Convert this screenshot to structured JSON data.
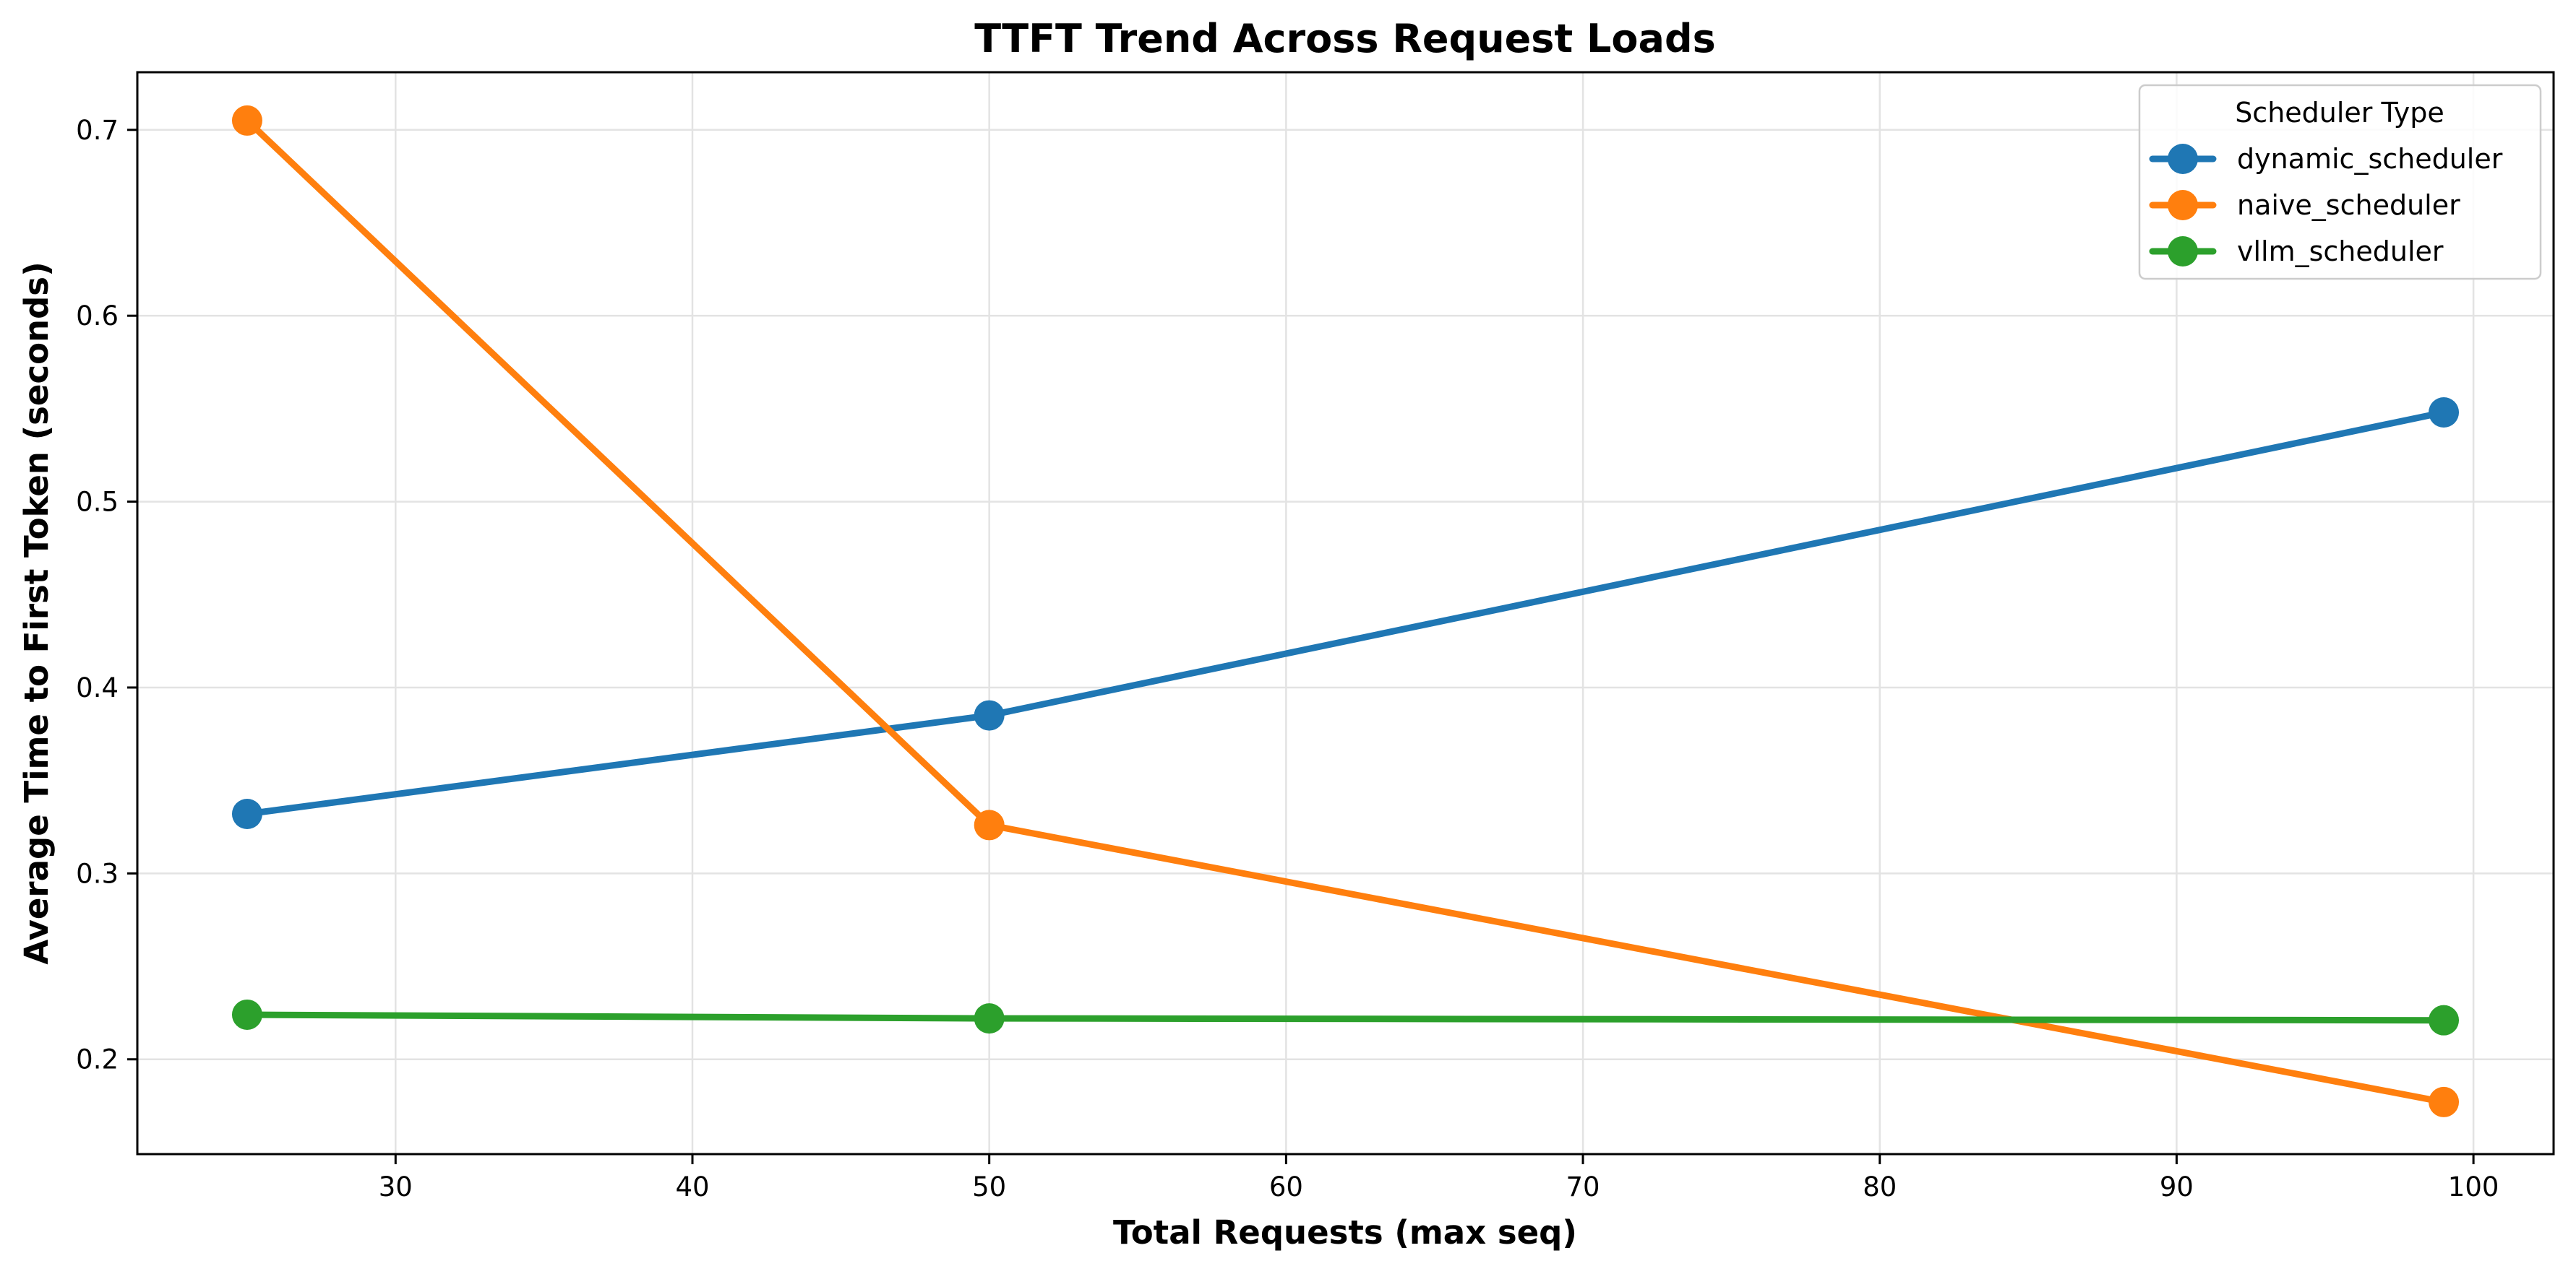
{
  "chart_data": {
    "type": "line",
    "title": "TTFT Trend Across Request Loads",
    "xlabel": "Total Requests (max seq)",
    "ylabel": "Average Time to First Token (seconds)",
    "xlim": [
      21.3,
      102.7
    ],
    "ylim": [
      0.149,
      0.731
    ],
    "xticks": [
      30,
      40,
      50,
      60,
      70,
      80,
      90,
      100
    ],
    "yticks": [
      0.2,
      0.3,
      0.4,
      0.5,
      0.6,
      0.7
    ],
    "xtick_labels": [
      "30",
      "40",
      "50",
      "60",
      "70",
      "80",
      "90",
      "100"
    ],
    "ytick_labels": [
      "0.2",
      "0.3",
      "0.4",
      "0.5",
      "0.6",
      "0.7"
    ],
    "grid": true,
    "legend": {
      "title": "Scheduler Type",
      "placement": "top-right"
    },
    "series": [
      {
        "name": "dynamic_scheduler",
        "color": "#1f77b4",
        "x": [
          25,
          50,
          99
        ],
        "y": [
          0.332,
          0.385,
          0.548
        ]
      },
      {
        "name": "naive_scheduler",
        "color": "#ff7f0e",
        "x": [
          25,
          50,
          99
        ],
        "y": [
          0.705,
          0.326,
          0.177
        ]
      },
      {
        "name": "vllm_scheduler",
        "color": "#2ca02c",
        "x": [
          25,
          50,
          99
        ],
        "y": [
          0.224,
          0.222,
          0.221
        ]
      }
    ]
  }
}
